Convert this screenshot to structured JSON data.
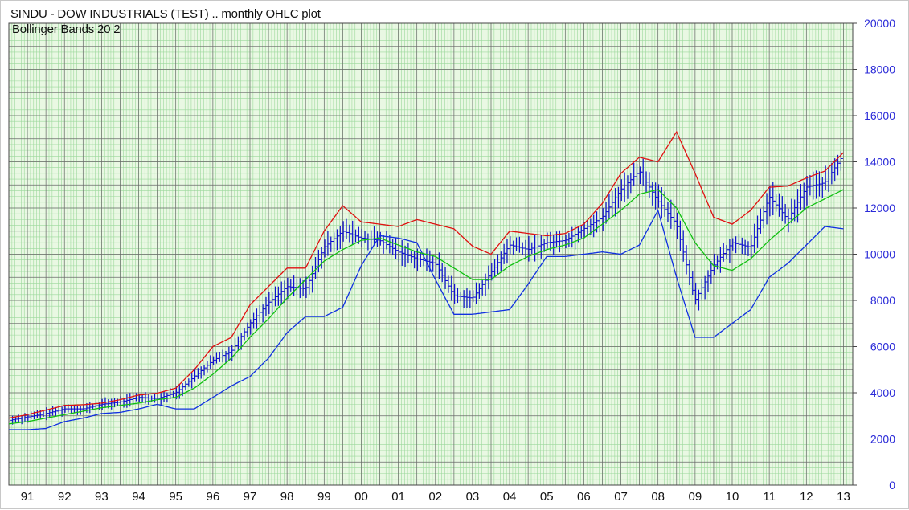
{
  "chart_data": {
    "type": "line",
    "title": "SINDU - DOW INDUSTRIALS (TEST) .. monthly OHLC plot",
    "subtitle": "Bollinger Bands 20 2",
    "x_tick_labels": [
      "91",
      "92",
      "93",
      "94",
      "95",
      "96",
      "97",
      "98",
      "99",
      "00",
      "01",
      "02",
      "03",
      "04",
      "05",
      "06",
      "07",
      "08",
      "09",
      "10",
      "11",
      "12",
      "13"
    ],
    "y_tick_labels": [
      "0",
      "2000",
      "4000",
      "6000",
      "8000",
      "10000",
      "12000",
      "14000",
      "16000",
      "18000",
      "20000"
    ],
    "xlim": [
      1990.5,
      2013.25
    ],
    "ylim": [
      0,
      20000
    ],
    "y_axis_position": "right",
    "grid": true,
    "colors": {
      "background": "#e9f8e3",
      "grid_minor": "#9bd89b",
      "grid_major": "#6a6a6a",
      "ohlc": "#1010d0",
      "upper_band": "#e01010",
      "middle_band": "#10c010",
      "lower_band": "#1030e0"
    },
    "series": [
      {
        "name": "Upper Band",
        "x": [
          1990.5,
          1991.0,
          1991.5,
          1992.0,
          1992.5,
          1993.0,
          1993.5,
          1994.0,
          1994.5,
          1995.0,
          1995.5,
          1996.0,
          1996.5,
          1997.0,
          1997.5,
          1998.0,
          1998.5,
          1999.0,
          1999.5,
          2000.0,
          2000.5,
          2001.0,
          2001.5,
          2002.0,
          2002.5,
          2003.0,
          2003.5,
          2004.0,
          2004.5,
          2005.0,
          2005.5,
          2006.0,
          2006.5,
          2007.0,
          2007.5,
          2008.0,
          2008.5,
          2009.0,
          2009.5,
          2010.0,
          2010.5,
          2011.0,
          2011.5,
          2012.0,
          2012.5,
          2013.0
        ],
        "values": [
          2900,
          3050,
          3250,
          3450,
          3480,
          3550,
          3700,
          3900,
          3980,
          4200,
          5000,
          6000,
          6400,
          7800,
          8600,
          9400,
          9400,
          11000,
          12100,
          11400,
          11300,
          11200,
          11500,
          11300,
          11100,
          10350,
          10000,
          11000,
          10900,
          10800,
          10900,
          11300,
          12200,
          13500,
          14200,
          14000,
          15300,
          13500,
          11600,
          11300,
          11900,
          12900,
          12950,
          13300,
          13600,
          14400
        ]
      },
      {
        "name": "Middle Band",
        "x": [
          1990.5,
          1991.0,
          1991.5,
          1992.0,
          1992.5,
          1993.0,
          1993.5,
          1994.0,
          1994.5,
          1995.0,
          1995.5,
          1996.0,
          1996.5,
          1997.0,
          1997.5,
          1998.0,
          1998.5,
          1999.0,
          1999.5,
          2000.0,
          2000.5,
          2001.0,
          2001.5,
          2002.0,
          2002.5,
          2003.0,
          2003.5,
          2004.0,
          2004.5,
          2005.0,
          2005.5,
          2006.0,
          2006.5,
          2007.0,
          2007.5,
          2008.0,
          2008.5,
          2009.0,
          2009.5,
          2010.0,
          2010.5,
          2011.0,
          2011.5,
          2012.0,
          2012.5,
          2013.0
        ],
        "values": [
          2650,
          2750,
          2900,
          3050,
          3200,
          3350,
          3450,
          3550,
          3700,
          3800,
          4200,
          4800,
          5500,
          6400,
          7200,
          8100,
          8900,
          9700,
          10200,
          10600,
          10700,
          10400,
          10100,
          9900,
          9400,
          8900,
          8900,
          9500,
          9900,
          10200,
          10400,
          10700,
          11300,
          11900,
          12600,
          12800,
          12000,
          10500,
          9500,
          9300,
          9800,
          10600,
          11300,
          12000,
          12400,
          12800
        ]
      },
      {
        "name": "Lower Band",
        "x": [
          1990.5,
          1991.0,
          1991.5,
          1992.0,
          1992.5,
          1993.0,
          1993.5,
          1994.0,
          1994.5,
          1995.0,
          1995.5,
          1996.0,
          1996.5,
          1997.0,
          1997.5,
          1998.0,
          1998.5,
          1999.0,
          1999.5,
          2000.0,
          2000.5,
          2001.0,
          2001.5,
          2002.0,
          2002.5,
          2003.0,
          2003.5,
          2004.0,
          2004.5,
          2005.0,
          2005.5,
          2006.0,
          2006.5,
          2007.0,
          2007.5,
          2008.0,
          2008.5,
          2009.0,
          2009.5,
          2010.0,
          2010.5,
          2011.0,
          2011.5,
          2012.0,
          2012.5,
          2013.0
        ],
        "values": [
          2400,
          2400,
          2450,
          2750,
          2900,
          3100,
          3150,
          3300,
          3500,
          3300,
          3300,
          3800,
          4300,
          4700,
          5500,
          6600,
          7300,
          7300,
          7700,
          9500,
          10800,
          10700,
          10500,
          8900,
          7400,
          7400,
          7500,
          7600,
          8700,
          9900,
          9900,
          10000,
          10100,
          10000,
          10400,
          11900,
          9000,
          6400,
          6400,
          7000,
          7600,
          9000,
          9600,
          10400,
          11200,
          11100
        ]
      },
      {
        "name": "OHLC",
        "x": [
          1990.5,
          1991.0,
          1991.5,
          1992.0,
          1992.5,
          1993.0,
          1993.5,
          1994.0,
          1994.5,
          1995.0,
          1995.5,
          1996.0,
          1996.5,
          1997.0,
          1997.5,
          1998.0,
          1998.5,
          1999.0,
          1999.5,
          2000.0,
          2000.5,
          2001.0,
          2001.5,
          2002.0,
          2002.5,
          2003.0,
          2003.5,
          2004.0,
          2004.5,
          2005.0,
          2005.5,
          2006.0,
          2006.5,
          2007.0,
          2007.5,
          2008.0,
          2008.5,
          2009.0,
          2009.5,
          2010.0,
          2010.5,
          2011.0,
          2011.5,
          2012.0,
          2012.5,
          2013.0
        ],
        "values": [
          2800,
          2950,
          3100,
          3300,
          3300,
          3500,
          3600,
          3800,
          3750,
          4000,
          4700,
          5400,
          5800,
          7000,
          7900,
          8600,
          8500,
          10300,
          11000,
          10700,
          10600,
          10100,
          9800,
          9600,
          8200,
          8100,
          9200,
          10400,
          10200,
          10500,
          10600,
          11100,
          11600,
          12800,
          13600,
          12300,
          11300,
          8000,
          9500,
          10500,
          10300,
          12500,
          11500,
          12900,
          13100,
          14300
        ]
      }
    ]
  }
}
